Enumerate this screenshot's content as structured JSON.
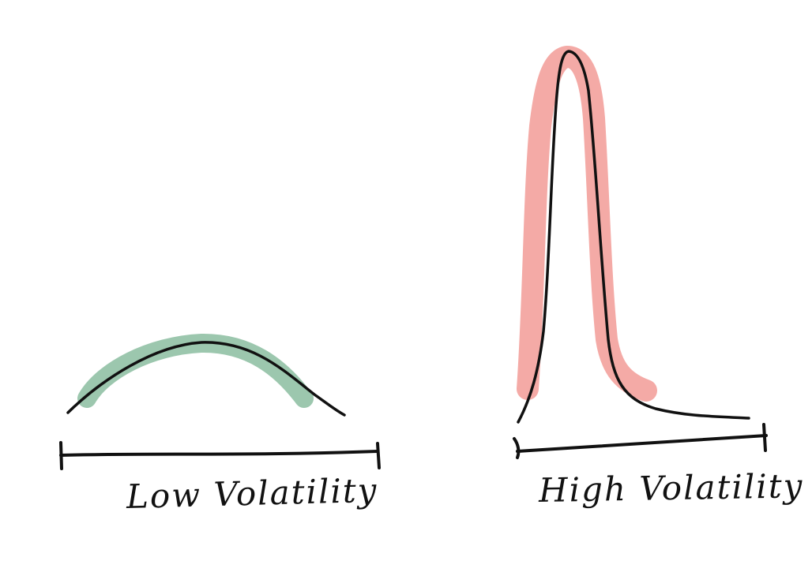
{
  "panels": [
    {
      "label": "Low Volatility",
      "highlight_color": "#9cc7ae",
      "curve_color": "#111111",
      "shape": "wide-flat-hump"
    },
    {
      "label": "High Volatility",
      "highlight_color": "#f4aaa6",
      "curve_color": "#111111",
      "shape": "tall-narrow-spike"
    }
  ]
}
